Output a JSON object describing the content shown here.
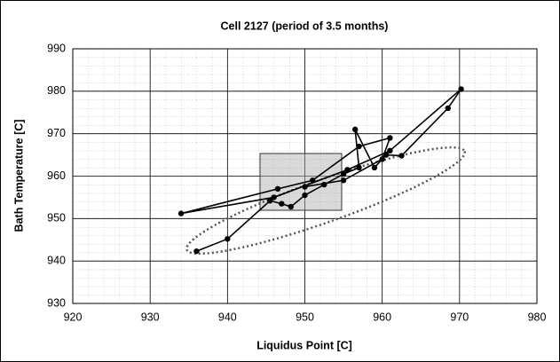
{
  "chart_data": {
    "type": "line",
    "title": "Cell 2127 (period of 3.5 months)",
    "x_label": "Liquidus Point [C]",
    "y_label": "Bath Temperature [C]",
    "x": [
      936.0,
      940.0,
      945.5,
      947.0,
      948.2,
      950.0,
      952.5,
      955.0,
      957.0,
      956.5,
      959.0,
      960.5,
      962.5,
      968.5,
      970.2,
      961.0,
      955.5,
      946.0,
      934.0,
      946.5,
      951.0,
      957.0,
      961.0,
      960.0,
      955.0,
      950.0
    ],
    "series": [
      {
        "color": "#000000",
        "values": [
          942.3,
          945.2,
          954.2,
          953.5,
          952.8,
          955.5,
          958.0,
          960.5,
          962.0,
          971.0,
          962.0,
          965.0,
          964.8,
          976.0,
          980.5,
          966.0,
          961.5,
          955.0,
          951.2,
          957.0,
          959.0,
          967.0,
          969.0,
          964.0,
          959.0,
          957.5
        ]
      }
    ],
    "xlim": [
      920,
      980
    ],
    "xticks": [
      920,
      930,
      940,
      950,
      960,
      970,
      980
    ],
    "ylim": [
      930,
      990
    ],
    "yticks": [
      930,
      940,
      950,
      960,
      970,
      980,
      990
    ],
    "grid": true
  }
}
